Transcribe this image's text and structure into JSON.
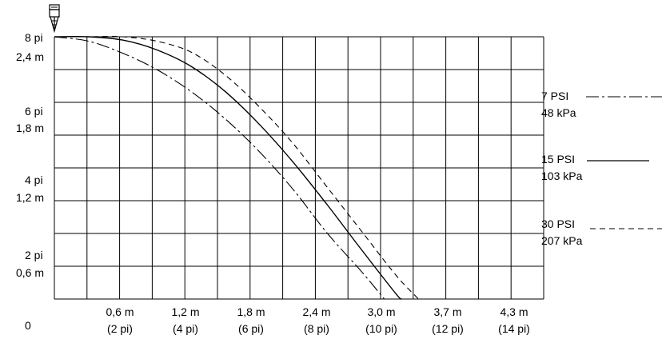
{
  "chart_data": {
    "type": "line",
    "title": "",
    "xlabel": "",
    "ylabel": "",
    "origin_label": "0",
    "xlim": [
      0,
      4.3
    ],
    "ylim": [
      0,
      2.4
    ],
    "grid": true,
    "x_ticks": [
      {
        "value": 0.6,
        "line1": "0,6 m",
        "line2": "(2 pi)"
      },
      {
        "value": 1.2,
        "line1": "1,2 m",
        "line2": "(4 pi)"
      },
      {
        "value": 1.8,
        "line1": "1,8 m",
        "line2": "(6 pi)"
      },
      {
        "value": 2.4,
        "line1": "2,4 m",
        "line2": "(8 pi)"
      },
      {
        "value": 3.0,
        "line1": "3,0 m",
        "line2": "(10 pi)"
      },
      {
        "value": 3.7,
        "line1": "3,7 m",
        "line2": "(12 pi)"
      },
      {
        "value": 4.3,
        "line1": "4,3 m",
        "line2": "(14 pi)"
      }
    ],
    "y_ticks": [
      {
        "value": 0.6,
        "line1": "2 pi",
        "line2": "0,6 m"
      },
      {
        "value": 1.2,
        "line1": "4 pi",
        "line2": "1,2 m"
      },
      {
        "value": 1.8,
        "line1": "6 pi",
        "line2": "1,8 m"
      },
      {
        "value": 2.4,
        "line1": "8 pi",
        "line2": "2,4 m"
      }
    ],
    "legend_position": "right",
    "series": [
      {
        "name": "7 PSI",
        "name2": "48 kPa",
        "dash": "dashdot",
        "points": [
          [
            0,
            2.4
          ],
          [
            0.3,
            2.36
          ],
          [
            0.6,
            2.25
          ],
          [
            0.9,
            2.1
          ],
          [
            1.2,
            1.9
          ],
          [
            1.5,
            1.65
          ],
          [
            1.8,
            1.35
          ],
          [
            2.1,
            1.0
          ],
          [
            2.4,
            0.6
          ],
          [
            2.7,
            0.25
          ],
          [
            2.9,
            0
          ]
        ]
      },
      {
        "name": "15 PSI",
        "name2": "103 kPa",
        "dash": "solid",
        "points": [
          [
            0,
            2.4
          ],
          [
            0.3,
            2.4
          ],
          [
            0.6,
            2.37
          ],
          [
            0.9,
            2.28
          ],
          [
            1.2,
            2.13
          ],
          [
            1.5,
            1.9
          ],
          [
            1.8,
            1.6
          ],
          [
            2.1,
            1.25
          ],
          [
            2.4,
            0.86
          ],
          [
            2.7,
            0.45
          ],
          [
            3.0,
            0.05
          ],
          [
            3.05,
            0
          ]
        ]
      },
      {
        "name": "30 PSI",
        "name2": "207 kPa",
        "dash": "dashed",
        "points": [
          [
            0,
            2.4
          ],
          [
            0.3,
            2.4
          ],
          [
            0.6,
            2.4
          ],
          [
            0.9,
            2.36
          ],
          [
            1.2,
            2.26
          ],
          [
            1.5,
            2.05
          ],
          [
            1.8,
            1.76
          ],
          [
            2.1,
            1.42
          ],
          [
            2.4,
            1.02
          ],
          [
            2.7,
            0.62
          ],
          [
            3.0,
            0.22
          ],
          [
            3.2,
            0
          ]
        ]
      }
    ]
  },
  "icons": {
    "sprinkler": "sprinkler-head-icon"
  }
}
